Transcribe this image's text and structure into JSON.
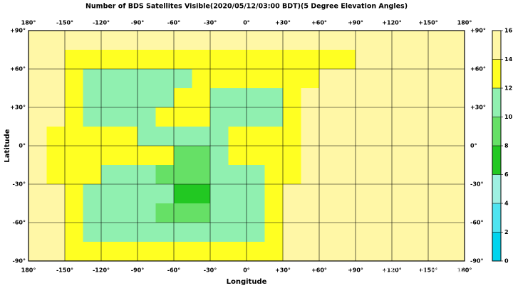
{
  "chart_data": {
    "type": "heatmap",
    "title": "Number of BDS Satellites Visible(2020/05/12/03:00 BDT)(5 Degree Elevation Angles)",
    "x_label": "Longitude",
    "y_label": "Latitude",
    "xlim": [
      -180,
      180
    ],
    "ylim": [
      -90,
      90
    ],
    "xticks": [
      {
        "value": -180,
        "label": "180°"
      },
      {
        "value": -150,
        "label": "-150°"
      },
      {
        "value": -120,
        "label": "-120°"
      },
      {
        "value": -90,
        "label": "-90°"
      },
      {
        "value": -60,
        "label": "-60°"
      },
      {
        "value": -30,
        "label": "-30°"
      },
      {
        "value": 0,
        "label": "0°"
      },
      {
        "value": 30,
        "label": "+30°"
      },
      {
        "value": 60,
        "label": "+60°"
      },
      {
        "value": 90,
        "label": "+90°"
      },
      {
        "value": 120,
        "label": "+120°"
      },
      {
        "value": 150,
        "label": "+150°"
      },
      {
        "value": 180,
        "label": "180°"
      }
    ],
    "yticks": [
      {
        "value": 90,
        "label": "+90°"
      },
      {
        "value": 60,
        "label": "+60°"
      },
      {
        "value": 30,
        "label": "+30°"
      },
      {
        "value": 0,
        "label": "0°"
      },
      {
        "value": -30,
        "label": "-30°"
      },
      {
        "value": -60,
        "label": "-60°"
      },
      {
        "value": -90,
        "label": "-90°"
      }
    ],
    "grid": true,
    "z": [
      [
        15,
        15,
        15,
        15,
        15,
        15,
        15,
        15,
        15,
        15,
        15,
        15,
        15,
        15,
        15,
        15,
        15,
        15,
        15,
        15,
        15,
        15,
        15,
        15
      ],
      [
        15,
        15,
        13,
        13,
        13,
        13,
        13,
        13,
        13,
        13,
        13,
        13,
        13,
        13,
        13,
        13,
        13,
        13,
        15,
        15,
        15,
        15,
        15,
        15
      ],
      [
        15,
        15,
        13,
        11,
        11,
        11,
        11,
        11,
        11,
        13,
        13,
        13,
        13,
        13,
        13,
        13,
        15,
        15,
        15,
        15,
        15,
        15,
        15,
        15
      ],
      [
        15,
        15,
        13,
        11,
        11,
        11,
        11,
        11,
        13,
        13,
        11,
        11,
        11,
        11,
        13,
        15,
        15,
        15,
        15,
        15,
        15,
        15,
        15,
        15
      ],
      [
        15,
        15,
        13,
        11,
        11,
        11,
        11,
        13,
        13,
        13,
        11,
        11,
        11,
        11,
        13,
        15,
        15,
        15,
        15,
        15,
        15,
        15,
        15,
        15
      ],
      [
        15,
        13,
        13,
        13,
        13,
        13,
        11,
        11,
        11,
        11,
        11,
        13,
        13,
        13,
        13,
        15,
        15,
        15,
        15,
        15,
        15,
        15,
        15,
        15
      ],
      [
        15,
        13,
        13,
        13,
        13,
        13,
        13,
        13,
        9,
        9,
        11,
        13,
        13,
        13,
        13,
        15,
        15,
        15,
        15,
        15,
        15,
        15,
        15,
        15
      ],
      [
        15,
        13,
        13,
        13,
        11,
        11,
        11,
        9,
        9,
        9,
        11,
        11,
        11,
        13,
        13,
        15,
        15,
        15,
        15,
        15,
        15,
        15,
        15,
        15
      ],
      [
        15,
        15,
        13,
        11,
        11,
        11,
        11,
        11,
        7,
        7,
        11,
        11,
        11,
        13,
        15,
        15,
        15,
        15,
        15,
        15,
        15,
        15,
        15,
        15
      ],
      [
        15,
        15,
        13,
        11,
        11,
        11,
        11,
        9,
        9,
        9,
        11,
        11,
        11,
        13,
        15,
        15,
        15,
        15,
        15,
        15,
        15,
        15,
        15,
        15
      ],
      [
        15,
        15,
        13,
        11,
        11,
        11,
        11,
        11,
        11,
        11,
        11,
        11,
        11,
        13,
        15,
        15,
        15,
        15,
        15,
        15,
        15,
        15,
        15,
        15
      ],
      [
        15,
        15,
        13,
        13,
        13,
        13,
        13,
        13,
        13,
        13,
        13,
        13,
        13,
        13,
        15,
        15,
        15,
        15,
        15,
        15,
        15,
        15,
        15,
        15
      ]
    ],
    "colorbar": {
      "levels": [
        0,
        2,
        4,
        6,
        8,
        10,
        12,
        14,
        16
      ],
      "colors": [
        "#00d4ee",
        "#4fe4f0",
        "#9ef0e2",
        "#22c822",
        "#66e066",
        "#90f0b0",
        "#ffff22",
        "#fff7a6"
      ]
    },
    "watermark": "知乎 @我们的太空"
  }
}
